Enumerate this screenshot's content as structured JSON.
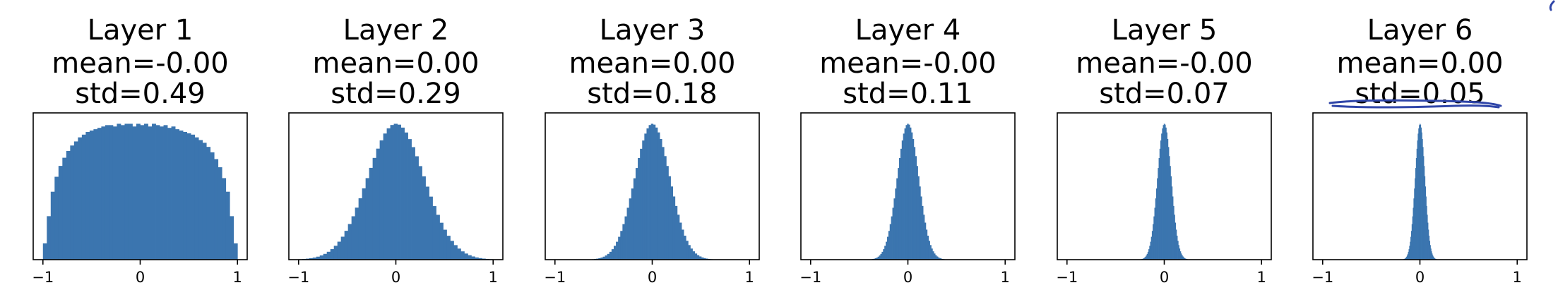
{
  "chart_data": [
    {
      "type": "bar",
      "title": [
        "Layer 1",
        "mean=-0.00",
        "std=0.49"
      ],
      "xlim": [
        -1.1,
        1.1
      ],
      "xticks": [
        -1,
        0,
        1
      ],
      "xtick_labels": [
        "−1",
        "0",
        "1"
      ],
      "ylim": [
        0,
        1.08
      ],
      "std": 0.49,
      "bar_color": "#3b75af",
      "bins": [
        -1.0,
        -0.96,
        -0.92,
        -0.88,
        -0.84,
        -0.8,
        -0.76,
        -0.72,
        -0.68,
        -0.64,
        -0.6,
        -0.56,
        -0.52,
        -0.48,
        -0.44,
        -0.4,
        -0.36,
        -0.32,
        -0.28,
        -0.24,
        -0.2,
        -0.16,
        -0.12,
        -0.08,
        -0.04,
        0.0,
        0.04,
        0.08,
        0.12,
        0.16,
        0.2,
        0.24,
        0.28,
        0.32,
        0.36,
        0.4,
        0.44,
        0.48,
        0.52,
        0.56,
        0.6,
        0.64,
        0.68,
        0.72,
        0.76,
        0.8,
        0.84,
        0.88,
        0.92,
        0.96
      ],
      "values": [
        0.12,
        0.32,
        0.5,
        0.61,
        0.69,
        0.75,
        0.8,
        0.84,
        0.87,
        0.9,
        0.92,
        0.94,
        0.95,
        0.96,
        0.97,
        0.98,
        0.99,
        0.99,
        0.98,
        1.0,
        0.99,
        1.0,
        1.0,
        0.98,
        1.0,
        0.99,
        1.0,
        0.98,
        1.0,
        0.99,
        0.98,
        0.99,
        0.97,
        0.98,
        0.96,
        0.95,
        0.94,
        0.93,
        0.92,
        0.9,
        0.88,
        0.86,
        0.83,
        0.79,
        0.74,
        0.68,
        0.6,
        0.5,
        0.32,
        0.12
      ]
    },
    {
      "type": "bar",
      "title": [
        "Layer 2",
        "mean=0.00",
        "std=0.29"
      ],
      "xlim": [
        -1.1,
        1.1
      ],
      "xticks": [
        -1,
        0,
        1
      ],
      "xtick_labels": [
        "−1",
        "0",
        "1"
      ],
      "ylim": [
        0,
        1.08
      ],
      "std": 0.29,
      "bar_color": "#3b75af"
    },
    {
      "type": "bar",
      "title": [
        "Layer 3",
        "mean=0.00",
        "std=0.18"
      ],
      "xlim": [
        -1.1,
        1.1
      ],
      "xticks": [
        -1,
        0,
        1
      ],
      "xtick_labels": [
        "−1",
        "0",
        "1"
      ],
      "ylim": [
        0,
        1.08
      ],
      "std": 0.18,
      "bar_color": "#3b75af"
    },
    {
      "type": "bar",
      "title": [
        "Layer 4",
        "mean=-0.00",
        "std=0.11"
      ],
      "xlim": [
        -1.1,
        1.1
      ],
      "xticks": [
        -1,
        0,
        1
      ],
      "xtick_labels": [
        "−1",
        "0",
        "1"
      ],
      "ylim": [
        0,
        1.08
      ],
      "std": 0.11,
      "bar_color": "#3b75af"
    },
    {
      "type": "bar",
      "title": [
        "Layer 5",
        "mean=-0.00",
        "std=0.07"
      ],
      "xlim": [
        -1.1,
        1.1
      ],
      "xticks": [
        -1,
        0,
        1
      ],
      "xtick_labels": [
        "−1",
        "0",
        "1"
      ],
      "ylim": [
        0,
        1.08
      ],
      "std": 0.07,
      "bar_color": "#3b75af"
    },
    {
      "type": "bar",
      "title": [
        "Layer 6",
        "mean=0.00",
        "std=0.05"
      ],
      "xlim": [
        -1.1,
        1.1
      ],
      "xticks": [
        -1,
        0,
        1
      ],
      "xtick_labels": [
        "−1",
        "0",
        "1"
      ],
      "ylim": [
        0,
        1.08
      ],
      "std": 0.05,
      "bar_color": "#3b75af"
    }
  ]
}
